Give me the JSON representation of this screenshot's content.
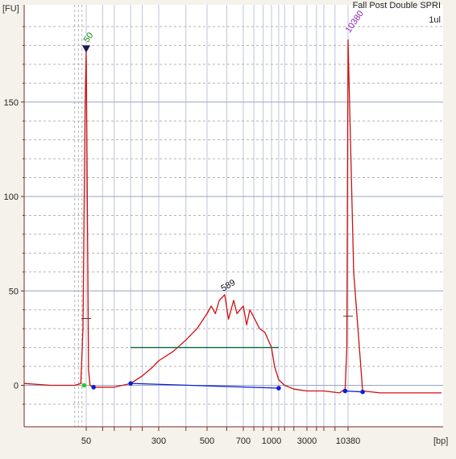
{
  "chart_data": {
    "type": "line",
    "title": "Fall Post Double SPRI",
    "subtitle": "1ul",
    "y_unit": "[FU]",
    "x_unit": "[bp]",
    "ylim": [
      -22,
      196
    ],
    "y_ticks": [
      0,
      50,
      100,
      150
    ],
    "x_ticks": [
      "50",
      "300",
      "500",
      "700",
      "1000",
      "3000",
      "10380"
    ],
    "grid": true,
    "colors": {
      "trace": "#cc1111",
      "baseline": "#0a1ed6",
      "smear_bar": "#0a6a3a",
      "grid_major": "#9aa4c3",
      "grid_minor": "#b4b4b4",
      "axis": "#7a2a2a",
      "marker_label_lower": "#1a8a1a",
      "marker_label_upper": "#8a2ab0"
    },
    "markers": [
      {
        "label": "50",
        "bp": 50,
        "peak_fu": 177
      },
      {
        "label": "10380",
        "bp": 10380,
        "peak_fu": 183
      }
    ],
    "peaks": [
      {
        "label": "589",
        "bp": 589,
        "fu": 48
      }
    ],
    "series": [
      {
        "x_bp": [
          15,
          25,
          40,
          45,
          47,
          49,
          50,
          51,
          53,
          55,
          60,
          100,
          150,
          200,
          250,
          300,
          350,
          400,
          450,
          500,
          520,
          540,
          560,
          589,
          610,
          640,
          660,
          700,
          730,
          760,
          800,
          860,
          920,
          1000,
          1100,
          1250,
          1500,
          2000,
          3000,
          5000,
          8000,
          9500,
          10000,
          10380,
          10800,
          11500,
          13000,
          20000
        ],
        "y_fu": [
          1,
          0,
          0,
          1,
          30,
          150,
          177,
          120,
          8,
          0,
          -1,
          -1,
          1,
          5,
          9,
          13,
          18,
          24,
          30,
          38,
          42,
          38,
          45,
          48,
          35,
          45,
          38,
          42,
          32,
          40,
          36,
          30,
          28,
          20,
          10,
          3,
          0,
          -2,
          -3,
          -3,
          -4,
          -2,
          20,
          183,
          60,
          -3,
          -4,
          -4
        ]
      }
    ],
    "smear_region": {
      "from_bp": 150,
      "to_bp": 1250,
      "fu": 20
    },
    "baseline_points": [
      {
        "bp": 60,
        "fu": -1
      },
      {
        "bp": 150,
        "fu": 1
      },
      {
        "bp": 1250,
        "fu": -1.5
      },
      {
        "bp": 9500,
        "fu": -3
      },
      {
        "bp": 11500,
        "fu": -3.5
      }
    ],
    "marker_points": [
      {
        "bp": 48,
        "fu": 0,
        "color": "#2ec82e"
      }
    ]
  }
}
